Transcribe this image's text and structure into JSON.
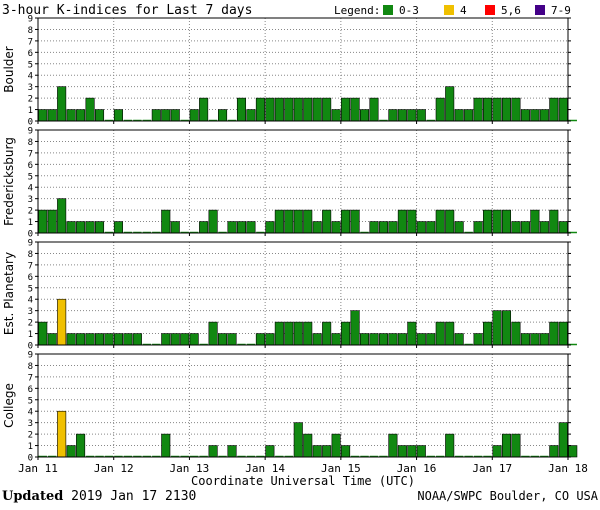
{
  "chart_data": {
    "type": "bar",
    "title": "3-hour K-indices for Last 7 days",
    "legend": {
      "label": "Legend:",
      "placement": "top-right",
      "items": [
        {
          "label": "0-3",
          "color": "#118811"
        },
        {
          "label": "4",
          "color": "#f0c000"
        },
        {
          "label": "5,6",
          "color": "#ff0000"
        },
        {
          "label": "7-9",
          "color": "#440088"
        }
      ]
    },
    "xlabel": "Coordinate Universal Time (UTC)",
    "x_ticks": [
      "Jan 11",
      "Jan 12",
      "Jan 13",
      "Jan 14",
      "Jan 15",
      "Jan 16",
      "Jan 17",
      "Jan 18"
    ],
    "ylim": [
      0,
      9
    ],
    "y_ticks": [
      "0",
      "1",
      "2",
      "3",
      "4",
      "5",
      "6",
      "7",
      "8",
      "9"
    ],
    "grid": true,
    "panels": [
      {
        "name": "Boulder",
        "values": [
          1,
          1,
          3,
          1,
          1,
          2,
          1,
          0,
          1,
          0,
          0,
          0,
          1,
          1,
          1,
          0,
          1,
          2,
          0,
          1,
          0,
          2,
          1,
          2,
          2,
          2,
          2,
          2,
          2,
          2,
          2,
          1,
          2,
          2,
          1,
          2,
          0,
          1,
          1,
          1,
          1,
          0,
          2,
          3,
          1,
          1,
          2,
          2,
          2,
          2,
          2,
          1,
          1,
          1,
          2,
          2,
          0
        ]
      },
      {
        "name": "Fredericksburg",
        "values": [
          2,
          2,
          3,
          1,
          1,
          1,
          1,
          0,
          1,
          0,
          0,
          0,
          0,
          2,
          1,
          0,
          0,
          1,
          2,
          0,
          1,
          1,
          1,
          0,
          1,
          2,
          2,
          2,
          2,
          1,
          2,
          1,
          2,
          2,
          0,
          1,
          1,
          1,
          2,
          2,
          1,
          1,
          2,
          2,
          1,
          0,
          1,
          2,
          2,
          2,
          1,
          1,
          2,
          1,
          2,
          1,
          0
        ]
      },
      {
        "name": "Est. Planetary",
        "values": [
          2,
          1,
          4,
          1,
          1,
          1,
          1,
          1,
          1,
          1,
          1,
          0,
          0,
          1,
          1,
          1,
          1,
          0,
          2,
          1,
          1,
          0,
          0,
          1,
          1,
          2,
          2,
          2,
          2,
          1,
          2,
          1,
          2,
          3,
          1,
          1,
          1,
          1,
          1,
          2,
          1,
          1,
          2,
          2,
          1,
          0,
          1,
          2,
          3,
          3,
          2,
          1,
          1,
          1,
          2,
          2,
          0
        ]
      },
      {
        "name": "College",
        "values": [
          0,
          0,
          4,
          1,
          2,
          0,
          0,
          0,
          0,
          0,
          0,
          0,
          0,
          2,
          0,
          0,
          0,
          0,
          1,
          0,
          1,
          0,
          0,
          0,
          1,
          0,
          0,
          3,
          2,
          1,
          1,
          2,
          1,
          0,
          0,
          0,
          0,
          2,
          1,
          1,
          1,
          0,
          0,
          2,
          0,
          0,
          0,
          0,
          1,
          2,
          2,
          0,
          0,
          0,
          1,
          3,
          1
        ]
      }
    ]
  },
  "footer": {
    "updated_label": "Updated",
    "updated_value": "2019 Jan 17 2130",
    "credit": "NOAA/SWPC Boulder, CO USA"
  }
}
